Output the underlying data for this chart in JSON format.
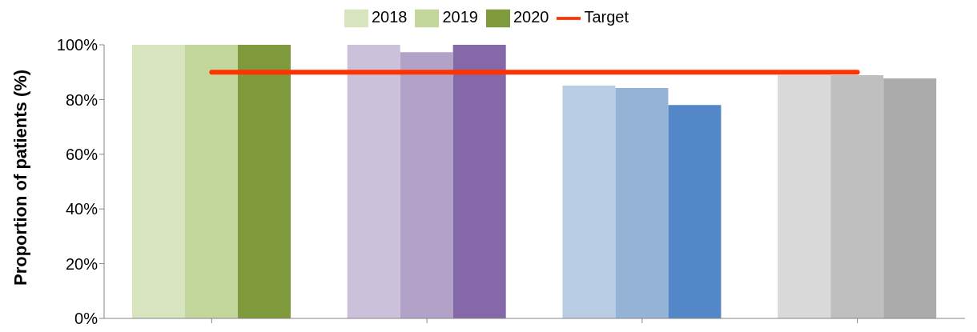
{
  "chart_data": {
    "type": "bar",
    "ylabel": "Proportion of patients (%)",
    "categories": [
      null,
      null,
      null,
      null
    ],
    "ylim": [
      0,
      100
    ],
    "yticks": [
      {
        "value": 0,
        "label": "0%"
      },
      {
        "value": 20,
        "label": "20%"
      },
      {
        "value": 40,
        "label": "40%"
      },
      {
        "value": 60,
        "label": "60%"
      },
      {
        "value": 80,
        "label": "80%"
      },
      {
        "value": 100,
        "label": "100%"
      }
    ],
    "grid": false,
    "legend": "top",
    "series": [
      {
        "name": "2018",
        "color": "#d7e4bd",
        "colors": [
          "#d7e4bd",
          "#ccc1da",
          "#b9cde5",
          "#d9d9d9"
        ],
        "values": [
          100,
          100,
          85.1,
          89
        ]
      },
      {
        "name": "2019",
        "color": "#c3d69b",
        "colors": [
          "#c3d69b",
          "#b3a2c7",
          "#95b3d7",
          "#bfbfbf"
        ],
        "values": [
          100,
          97.3,
          84.2,
          88.9
        ]
      },
      {
        "name": "2020",
        "color": "#7f993d",
        "colors": [
          "#7f993d",
          "#8468a8",
          "#5487c7",
          "#ababab"
        ],
        "values": [
          100,
          100,
          78,
          87.7
        ]
      },
      {
        "name": "Target",
        "type": "line",
        "color": "#ff3300",
        "values": [
          90,
          90,
          90,
          90
        ],
        "marker": "none"
      }
    ]
  }
}
